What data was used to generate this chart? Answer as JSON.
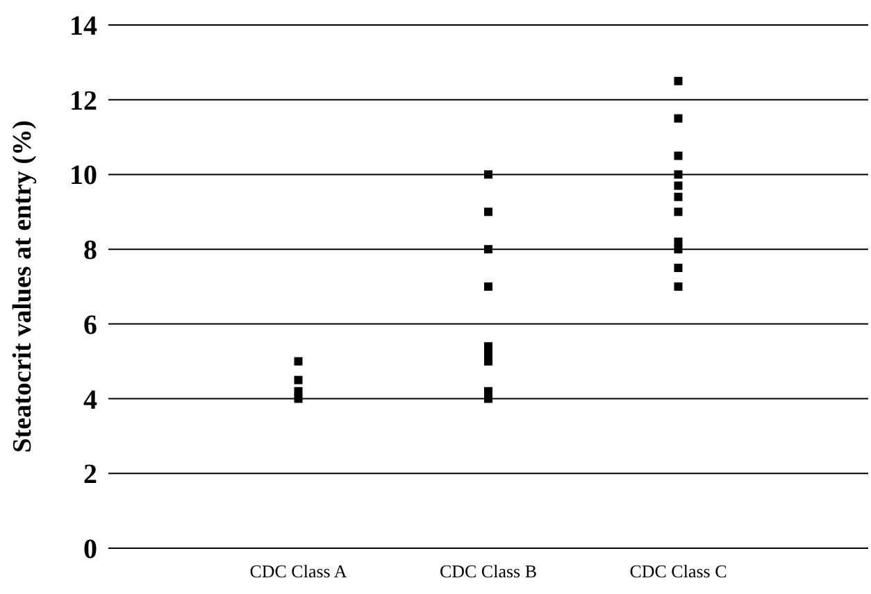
{
  "chart_data": {
    "type": "scatter",
    "ylabel": "Steatocrit values at entry (%)",
    "categories": [
      "CDC Class A",
      "CDC Class B",
      "CDC Class C"
    ],
    "ylim": [
      0,
      14
    ],
    "yticks": [
      0,
      2,
      4,
      6,
      8,
      10,
      12,
      14
    ],
    "grid": "y",
    "marker": "square",
    "series": [
      {
        "color": "#000000",
        "x": [
          "CDC Class A",
          "CDC Class A",
          "CDC Class A",
          "CDC Class A",
          "CDC Class B",
          "CDC Class B",
          "CDC Class B",
          "CDC Class B",
          "CDC Class B",
          "CDC Class B",
          "CDC Class B",
          "CDC Class B",
          "CDC Class B",
          "CDC Class C",
          "CDC Class C",
          "CDC Class C",
          "CDC Class C",
          "CDC Class C",
          "CDC Class C",
          "CDC Class C",
          "CDC Class C",
          "CDC Class C",
          "CDC Class C",
          "CDC Class C"
        ],
        "values": [
          5.0,
          4.5,
          4.2,
          4.0,
          10,
          9,
          8,
          7,
          5.4,
          5.2,
          5.0,
          4.2,
          4.0,
          12.5,
          11.5,
          10.5,
          10.0,
          9.7,
          9.4,
          9.0,
          8.2,
          8.0,
          7.5,
          7.0
        ]
      }
    ]
  }
}
